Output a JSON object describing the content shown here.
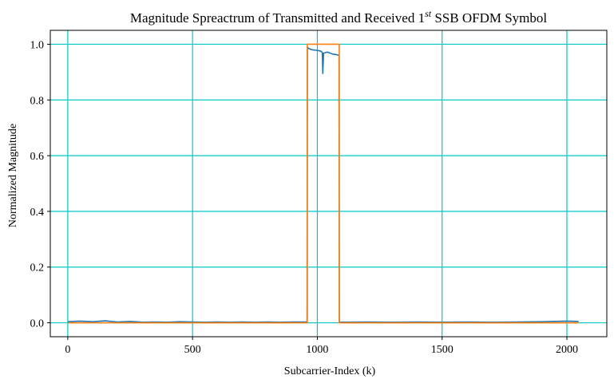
{
  "chart_data": {
    "type": "line",
    "title": {
      "prefix": "Magnitude Spreactrum of Transmitted and Received 1",
      "superscript": "st",
      "suffix": " SSB OFDM Symbol"
    },
    "xlabel": "Subcarrier-Index (k)",
    "ylabel": "Normalized Magnitude",
    "xlim": [
      -70,
      2160
    ],
    "ylim": [
      -0.05,
      1.05
    ],
    "xticks": [
      0,
      500,
      1000,
      1500,
      2000
    ],
    "yticks": [
      0.0,
      0.2,
      0.4,
      0.6,
      0.8,
      1.0
    ],
    "xtick_labels": [
      "0",
      "500",
      "1000",
      "1500",
      "2000"
    ],
    "ytick_labels": [
      "0.0",
      "0.2",
      "0.4",
      "0.6",
      "0.8",
      "1.0"
    ],
    "grid": true,
    "grid_color": "#00c8c8",
    "series": [
      {
        "color": "#1f77b4",
        "x": [
          0,
          50,
          100,
          150,
          200,
          250,
          300,
          350,
          400,
          450,
          500,
          550,
          600,
          650,
          700,
          750,
          800,
          850,
          900,
          959,
          960,
          965,
          980,
          1000,
          1015,
          1020,
          1022,
          1025,
          1040,
          1060,
          1080,
          1087,
          1088,
          1100,
          1200,
          1300,
          1400,
          1500,
          1600,
          1700,
          1800,
          1900,
          1950,
          2000,
          2047
        ],
        "y": [
          0.004,
          0.006,
          0.004,
          0.007,
          0.003,
          0.005,
          0.002,
          0.003,
          0.002,
          0.004,
          0.003,
          0.002,
          0.003,
          0.002,
          0.003,
          0.002,
          0.003,
          0.002,
          0.003,
          0.003,
          0.99,
          0.985,
          0.98,
          0.978,
          0.975,
          0.97,
          0.895,
          0.968,
          0.972,
          0.965,
          0.962,
          0.96,
          0.003,
          0.002,
          0.003,
          0.002,
          0.003,
          0.002,
          0.003,
          0.002,
          0.003,
          0.004,
          0.005,
          0.006,
          0.005
        ]
      },
      {
        "color": "#ff7f0e",
        "x": [
          0,
          960,
          960,
          1088,
          1088,
          2047
        ],
        "y": [
          0.0,
          0.0,
          1.0,
          1.0,
          0.0,
          0.0
        ]
      }
    ]
  }
}
